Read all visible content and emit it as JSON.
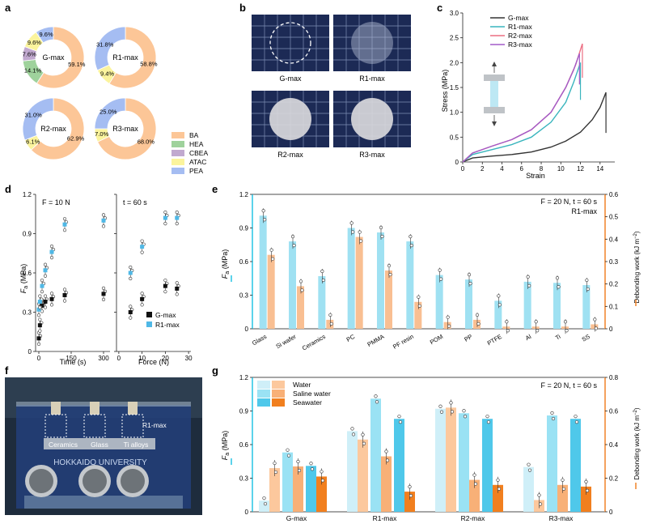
{
  "colors": {
    "BA": "#fcc697",
    "HEA": "#9fd29c",
    "CBEA": "#c1a9cf",
    "ATAC": "#fbf49d",
    "PEA": "#a5bdf2",
    "blue": "#9fe1f2",
    "blue_dot": "#4fb8e6",
    "orange": "#f9bf92",
    "orange_axis": "#f28a36",
    "cyan_axis": "#33c8e6",
    "teal": "#39b5bd",
    "pink": "#ec6e82",
    "purple": "#a25bc8",
    "water_blue": "#cfeff8",
    "water_orange": "#fcc89d",
    "saline_blue": "#9ae2f4",
    "saline_orange": "#f8b077",
    "sea_blue": "#4fc8ea",
    "sea_orange": "#f17f1e",
    "dark": "#333333",
    "tile": "#1c2a55"
  },
  "panel_labels": {
    "a": "a",
    "b": "b",
    "c": "c",
    "d": "d",
    "e": "e",
    "f": "f",
    "g": "g"
  },
  "panel_a": {
    "donuts": [
      {
        "name": "G-max",
        "slices": [
          {
            "label": "59.1%",
            "value": 59.1,
            "comp": "BA"
          },
          {
            "label": "14.1%",
            "value": 14.1,
            "comp": "HEA"
          },
          {
            "label": "7.6%",
            "value": 7.6,
            "comp": "CBEA"
          },
          {
            "label": "9.6%",
            "value": 9.6,
            "comp": "ATAC"
          },
          {
            "label": "9.6%",
            "value": 9.6,
            "comp": "PEA"
          }
        ]
      },
      {
        "name": "R1-max",
        "slices": [
          {
            "label": "58.8%",
            "value": 58.8,
            "comp": "BA"
          },
          {
            "label": "9.4%",
            "value": 9.4,
            "comp": "ATAC"
          },
          {
            "label": "31.8%",
            "value": 31.8,
            "comp": "PEA"
          }
        ]
      },
      {
        "name": "R2-max",
        "slices": [
          {
            "label": "62.9%",
            "value": 62.9,
            "comp": "BA"
          },
          {
            "label": "6.1%",
            "value": 6.1,
            "comp": "ATAC"
          },
          {
            "label": "31.0%",
            "value": 31.0,
            "comp": "PEA"
          }
        ]
      },
      {
        "name": "R3-max",
        "slices": [
          {
            "label": "68.0%",
            "value": 68.0,
            "comp": "BA"
          },
          {
            "label": "7.0%",
            "value": 7.0,
            "comp": "ATAC"
          },
          {
            "label": "25.0%",
            "value": 25.0,
            "comp": "PEA"
          }
        ]
      }
    ],
    "legend": [
      "BA",
      "HEA",
      "CBEA",
      "ATAC",
      "PEA"
    ]
  },
  "panel_b": {
    "tiles": [
      "G-max",
      "R1-max",
      "R2-max",
      "R3-max"
    ]
  },
  "panel_c": {
    "xlabel": "Strain",
    "ylabel": "Stress (MPa)",
    "xticks": [
      "0",
      "2",
      "4",
      "6",
      "8",
      "10",
      "12",
      "14"
    ],
    "yticks": [
      "0",
      "0.5",
      "1.0",
      "1.5",
      "2.0",
      "2.5",
      "3.0"
    ],
    "xlim": [
      0,
      15.5
    ],
    "ylim": [
      0,
      3.0
    ],
    "series": [
      {
        "name": "G-max",
        "color": "#333333",
        "x": [
          0,
          1,
          3,
          5,
          7,
          9,
          10.5,
          12,
          13.2,
          14,
          14.6
        ],
        "y": [
          0,
          0.08,
          0.12,
          0.15,
          0.2,
          0.3,
          0.42,
          0.6,
          0.85,
          1.1,
          1.4
        ]
      },
      {
        "name": "R1-max",
        "color": "#39b5bd",
        "x": [
          0,
          1,
          3,
          5,
          7,
          9,
          10.5,
          11.3,
          12
        ],
        "y": [
          0,
          0.15,
          0.25,
          0.35,
          0.5,
          0.8,
          1.2,
          1.6,
          2.0
        ]
      },
      {
        "name": "R2-max",
        "color": "#ec6e82",
        "x": [
          0,
          1,
          3,
          5,
          7,
          9,
          10.5,
          11.5,
          12.2
        ],
        "y": [
          0,
          0.18,
          0.32,
          0.45,
          0.65,
          1.0,
          1.5,
          1.95,
          2.38
        ]
      },
      {
        "name": "R3-max",
        "color": "#a25bc8",
        "x": [
          0,
          1,
          3,
          5,
          7,
          9,
          10.5,
          11.3,
          11.9
        ],
        "y": [
          0,
          0.18,
          0.32,
          0.45,
          0.65,
          1.0,
          1.5,
          1.85,
          2.18
        ]
      }
    ]
  },
  "panel_d": {
    "ylabel_main": "F",
    "ylabel_sub": "a",
    "ylabel_unit": " (MPa)",
    "yticks": [
      "0",
      "0.3",
      "0.6",
      "0.9",
      "1.2"
    ],
    "ylim": [
      0,
      1.2
    ],
    "left": {
      "title": "F = 10 N",
      "xlabel": "Time (s)",
      "xticks": [
        "0",
        "150",
        "300"
      ],
      "xlim": [
        -15,
        330
      ],
      "gmax": [
        {
          "x": 0,
          "y": 0.1
        },
        {
          "x": 5,
          "y": 0.2
        },
        {
          "x": 15,
          "y": 0.35
        },
        {
          "x": 30,
          "y": 0.38
        },
        {
          "x": 60,
          "y": 0.4
        },
        {
          "x": 120,
          "y": 0.43
        },
        {
          "x": 300,
          "y": 0.44
        }
      ],
      "r1max": [
        {
          "x": 0,
          "y": 0.32
        },
        {
          "x": 5,
          "y": 0.38
        },
        {
          "x": 15,
          "y": 0.5
        },
        {
          "x": 30,
          "y": 0.62
        },
        {
          "x": 60,
          "y": 0.76
        },
        {
          "x": 120,
          "y": 0.97
        },
        {
          "x": 300,
          "y": 1.0
        }
      ]
    },
    "right": {
      "title": "t = 60 s",
      "xlabel": "Force (N)",
      "xticks": [
        "0",
        "10",
        "20",
        "30"
      ],
      "xlim": [
        -1,
        31
      ],
      "gmax": [
        {
          "x": 5,
          "y": 0.3
        },
        {
          "x": 10,
          "y": 0.4
        },
        {
          "x": 20,
          "y": 0.5
        },
        {
          "x": 25,
          "y": 0.48
        }
      ],
      "r1max": [
        {
          "x": 5,
          "y": 0.6
        },
        {
          "x": 10,
          "y": 0.8
        },
        {
          "x": 20,
          "y": 1.02
        },
        {
          "x": 25,
          "y": 1.02
        }
      ]
    },
    "legend": [
      "G-max",
      "R1-max"
    ]
  },
  "panel_e": {
    "annotation_1": "F = 20 N, t = 60 s",
    "annotation_2": "R1-max",
    "ylabel_left": "F",
    "ylabel_left_sub": "a",
    "ylabel_left_unit": " (MPa)",
    "ylabel_right": "Debonding work (kJ m",
    "ylabel_right_sup": "−2",
    "ylabel_right_end": ")",
    "yticks_left": [
      "0",
      "0.3",
      "0.6",
      "0.9",
      "1.2"
    ],
    "ylim_left": [
      0,
      1.2
    ],
    "yticks_right": [
      "0",
      "0.1",
      "0.2",
      "0.3",
      "0.4",
      "0.5",
      "0.6"
    ],
    "ylim_right": [
      0,
      0.6
    ],
    "categories": [
      "Glass",
      "Si wafer",
      "Ceramics",
      "PC",
      "PMMA",
      "PF resin",
      "POM",
      "PP",
      "PTFE",
      "Al",
      "Ti",
      "SS"
    ],
    "fa": [
      1.01,
      0.78,
      0.47,
      0.9,
      0.86,
      0.78,
      0.48,
      0.44,
      0.25,
      0.42,
      0.41,
      0.39
    ],
    "work": [
      0.33,
      0.19,
      0.04,
      0.41,
      0.26,
      0.12,
      0.03,
      0.04,
      0.01,
      0.01,
      0.01,
      0.02
    ]
  },
  "panel_f": {
    "label": "R1-max",
    "samples": [
      "Ceramics",
      "Glass",
      "Ti alloys"
    ],
    "brand": "HOKKAIDO UNIVERSITY"
  },
  "panel_g": {
    "annotation": "F = 20 N, t = 60 s",
    "ylabel_left": "F",
    "ylabel_left_sub": "a",
    "ylabel_left_unit": " (MPa)",
    "ylabel_right": "Debonding work (kJ m",
    "ylabel_right_sup": "−2",
    "ylabel_right_end": ")",
    "yticks_left": [
      "0",
      "0.3",
      "0.6",
      "0.9",
      "1.2"
    ],
    "ylim_left": [
      0,
      1.2
    ],
    "yticks_right": [
      "0",
      "0.2",
      "0.4",
      "0.6",
      "0.8"
    ],
    "ylim_right": [
      0,
      0.8
    ],
    "categories": [
      "G-max",
      "R1-max",
      "R2-max",
      "R3-max"
    ],
    "legend": [
      "Water",
      "Saline water",
      "Seawater"
    ],
    "fa": {
      "Water": [
        0.1,
        0.72,
        0.92,
        0.4
      ],
      "Saline water": [
        0.53,
        1.01,
        0.88,
        0.86
      ],
      "Seawater": [
        0.41,
        0.83,
        0.83,
        0.83
      ]
    },
    "work": {
      "Water": [
        0.26,
        0.43,
        0.62,
        0.07
      ],
      "Saline water": [
        0.27,
        0.33,
        0.19,
        0.16
      ],
      "Seawater": [
        0.21,
        0.12,
        0.16,
        0.15
      ]
    }
  }
}
